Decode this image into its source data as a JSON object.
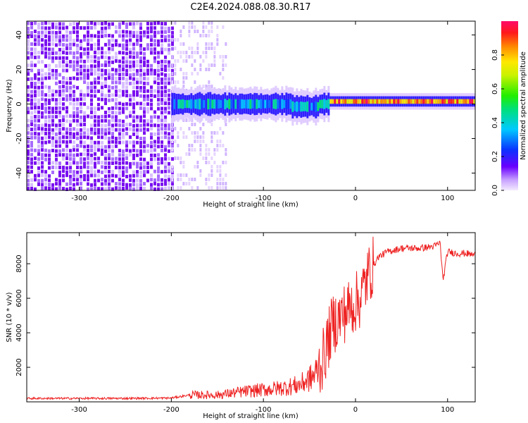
{
  "title": "C2E4.2024.088.08.30.R17",
  "charts": {
    "spectrogram": {
      "type": "heatmap",
      "xlabel": "Height of straight line (km)",
      "ylabel": "Frequency (Hz)",
      "xlim": [
        -357,
        130
      ],
      "ylim": [
        -50,
        48
      ],
      "xticks": [
        -300,
        -200,
        -100,
        0,
        100
      ],
      "yticks": [
        -40,
        -20,
        0,
        20,
        40
      ],
      "colorbar": {
        "label": "Normalized spectral amplitude",
        "range": [
          0,
          1
        ],
        "ticks": [
          "0.0",
          "0.2",
          "0.4",
          "0.6",
          "0.8"
        ],
        "tick_values": [
          0.0,
          0.2,
          0.4,
          0.6,
          0.8
        ]
      },
      "regions": [
        {
          "x_range": [
            -357,
            -200
          ],
          "frequency_range": [
            -50,
            48
          ],
          "amplitude": 0.05,
          "description_level": "noise"
        },
        {
          "x_range": [
            -200,
            -140
          ],
          "frequency_range": [
            -50,
            48
          ],
          "amplitude": 0.02,
          "description_level": "sparse noise"
        },
        {
          "x_range": [
            -200,
            -30
          ],
          "frequency_center": 0,
          "frequency_halfwidth": 5,
          "amplitude": 0.35
        },
        {
          "x_range": [
            -30,
            130
          ],
          "frequency_center": 1.5,
          "frequency_halfwidth": 2,
          "amplitude": 1.0
        }
      ]
    },
    "snr": {
      "type": "line",
      "xlabel": "Height of straight line (km)",
      "ylabel": "SNR (10 * v/v)",
      "xlim": [
        -357,
        130
      ],
      "ylim": [
        0,
        9800
      ],
      "xticks": [
        -300,
        -200,
        -100,
        0,
        100
      ],
      "yticks": [
        2000,
        4000,
        6000,
        8000
      ],
      "color": "#ee2222",
      "series": [
        {
          "x": [
            -357,
            -300,
            -250,
            -200,
            -180,
            -150,
            -120,
            -100,
            -80,
            -60,
            -45,
            -35,
            -25,
            -15,
            -5,
            5,
            15,
            25,
            35,
            50,
            70,
            85,
            92,
            95,
            100,
            110,
            120,
            130
          ],
          "values": [
            200,
            200,
            200,
            220,
            400,
            400,
            600,
            700,
            800,
            1000,
            1500,
            2500,
            4500,
            5000,
            5500,
            6000,
            7500,
            8400,
            8700,
            8900,
            8900,
            9000,
            9200,
            7000,
            8700,
            8600,
            8600,
            8500
          ]
        }
      ]
    }
  }
}
